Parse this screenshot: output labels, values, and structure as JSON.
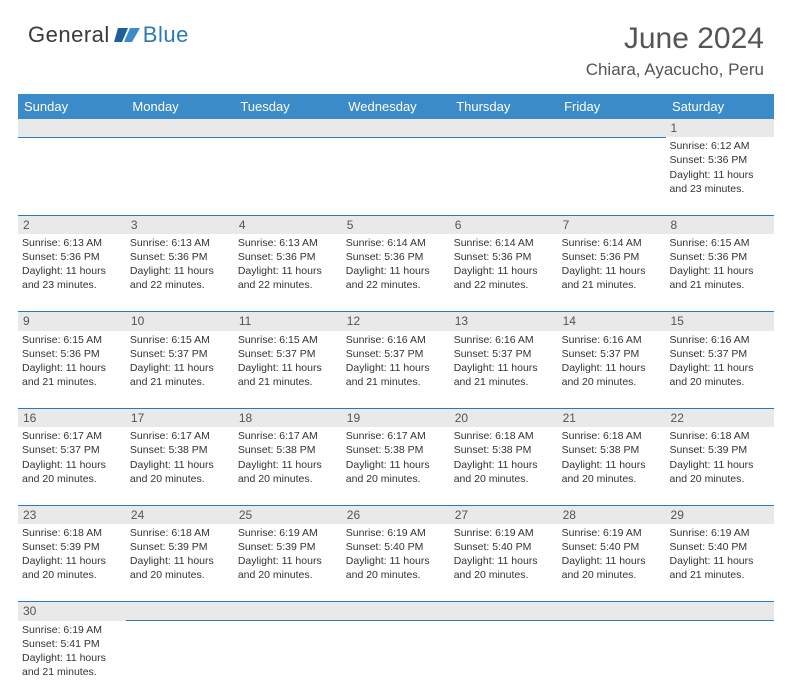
{
  "brand": {
    "part1": "General",
    "part2": "Blue"
  },
  "title": "June 2024",
  "location": "Chiara, Ayacucho, Peru",
  "header_bg": "#3b8bc8",
  "border_color": "#2a7ab9",
  "daynum_bg": "#e9e9e9",
  "days": [
    "Sunday",
    "Monday",
    "Tuesday",
    "Wednesday",
    "Thursday",
    "Friday",
    "Saturday"
  ],
  "weeks": [
    [
      null,
      null,
      null,
      null,
      null,
      null,
      {
        "n": "1",
        "sr": "6:12 AM",
        "ss": "5:36 PM",
        "dl": "11 hours and 23 minutes."
      }
    ],
    [
      {
        "n": "2",
        "sr": "6:13 AM",
        "ss": "5:36 PM",
        "dl": "11 hours and 23 minutes."
      },
      {
        "n": "3",
        "sr": "6:13 AM",
        "ss": "5:36 PM",
        "dl": "11 hours and 22 minutes."
      },
      {
        "n": "4",
        "sr": "6:13 AM",
        "ss": "5:36 PM",
        "dl": "11 hours and 22 minutes."
      },
      {
        "n": "5",
        "sr": "6:14 AM",
        "ss": "5:36 PM",
        "dl": "11 hours and 22 minutes."
      },
      {
        "n": "6",
        "sr": "6:14 AM",
        "ss": "5:36 PM",
        "dl": "11 hours and 22 minutes."
      },
      {
        "n": "7",
        "sr": "6:14 AM",
        "ss": "5:36 PM",
        "dl": "11 hours and 21 minutes."
      },
      {
        "n": "8",
        "sr": "6:15 AM",
        "ss": "5:36 PM",
        "dl": "11 hours and 21 minutes."
      }
    ],
    [
      {
        "n": "9",
        "sr": "6:15 AM",
        "ss": "5:36 PM",
        "dl": "11 hours and 21 minutes."
      },
      {
        "n": "10",
        "sr": "6:15 AM",
        "ss": "5:37 PM",
        "dl": "11 hours and 21 minutes."
      },
      {
        "n": "11",
        "sr": "6:15 AM",
        "ss": "5:37 PM",
        "dl": "11 hours and 21 minutes."
      },
      {
        "n": "12",
        "sr": "6:16 AM",
        "ss": "5:37 PM",
        "dl": "11 hours and 21 minutes."
      },
      {
        "n": "13",
        "sr": "6:16 AM",
        "ss": "5:37 PM",
        "dl": "11 hours and 21 minutes."
      },
      {
        "n": "14",
        "sr": "6:16 AM",
        "ss": "5:37 PM",
        "dl": "11 hours and 20 minutes."
      },
      {
        "n": "15",
        "sr": "6:16 AM",
        "ss": "5:37 PM",
        "dl": "11 hours and 20 minutes."
      }
    ],
    [
      {
        "n": "16",
        "sr": "6:17 AM",
        "ss": "5:37 PM",
        "dl": "11 hours and 20 minutes."
      },
      {
        "n": "17",
        "sr": "6:17 AM",
        "ss": "5:38 PM",
        "dl": "11 hours and 20 minutes."
      },
      {
        "n": "18",
        "sr": "6:17 AM",
        "ss": "5:38 PM",
        "dl": "11 hours and 20 minutes."
      },
      {
        "n": "19",
        "sr": "6:17 AM",
        "ss": "5:38 PM",
        "dl": "11 hours and 20 minutes."
      },
      {
        "n": "20",
        "sr": "6:18 AM",
        "ss": "5:38 PM",
        "dl": "11 hours and 20 minutes."
      },
      {
        "n": "21",
        "sr": "6:18 AM",
        "ss": "5:38 PM",
        "dl": "11 hours and 20 minutes."
      },
      {
        "n": "22",
        "sr": "6:18 AM",
        "ss": "5:39 PM",
        "dl": "11 hours and 20 minutes."
      }
    ],
    [
      {
        "n": "23",
        "sr": "6:18 AM",
        "ss": "5:39 PM",
        "dl": "11 hours and 20 minutes."
      },
      {
        "n": "24",
        "sr": "6:18 AM",
        "ss": "5:39 PM",
        "dl": "11 hours and 20 minutes."
      },
      {
        "n": "25",
        "sr": "6:19 AM",
        "ss": "5:39 PM",
        "dl": "11 hours and 20 minutes."
      },
      {
        "n": "26",
        "sr": "6:19 AM",
        "ss": "5:40 PM",
        "dl": "11 hours and 20 minutes."
      },
      {
        "n": "27",
        "sr": "6:19 AM",
        "ss": "5:40 PM",
        "dl": "11 hours and 20 minutes."
      },
      {
        "n": "28",
        "sr": "6:19 AM",
        "ss": "5:40 PM",
        "dl": "11 hours and 20 minutes."
      },
      {
        "n": "29",
        "sr": "6:19 AM",
        "ss": "5:40 PM",
        "dl": "11 hours and 21 minutes."
      }
    ],
    [
      {
        "n": "30",
        "sr": "6:19 AM",
        "ss": "5:41 PM",
        "dl": "11 hours and 21 minutes."
      },
      null,
      null,
      null,
      null,
      null,
      null
    ]
  ],
  "labels": {
    "sunrise": "Sunrise:",
    "sunset": "Sunset:",
    "daylight": "Daylight:"
  }
}
